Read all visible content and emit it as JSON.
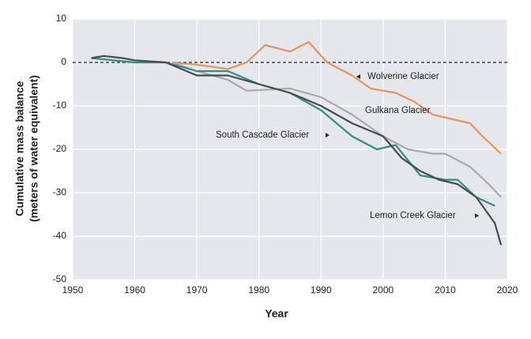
{
  "chart_data": {
    "type": "line",
    "xlabel": "Year",
    "ylabel": [
      "Cumulative mass balance",
      "(meters of water equivalent)"
    ],
    "xlim": [
      1950,
      2020
    ],
    "xticks": [
      1950,
      1960,
      1970,
      1980,
      1990,
      2000,
      2010,
      2020
    ],
    "ylim": [
      -50,
      10
    ],
    "yticks": [
      10,
      0,
      -10,
      -20,
      -30,
      -40,
      -50
    ],
    "grid": true,
    "series": [
      {
        "name": "Wolverine Glacier",
        "color": "#e8915a",
        "x": [
          1966,
          1970,
          1975,
          1978,
          1981,
          1985,
          1988,
          1991,
          1995,
          1998,
          2002,
          2005,
          2008,
          2011,
          2014,
          2016,
          2019
        ],
        "values": [
          0,
          -0.5,
          -1.5,
          0,
          4,
          2.5,
          4.7,
          0,
          -3,
          -6,
          -7,
          -9,
          -12,
          -13,
          -14,
          -17,
          -21
        ]
      },
      {
        "name": "Gulkana Glacier",
        "color": "#a9a9a9",
        "x": [
          1966,
          1970,
          1975,
          1978,
          1985,
          1990,
          1995,
          2000,
          2004,
          2008,
          2010,
          2014,
          2017,
          2019
        ],
        "values": [
          0,
          -2,
          -4,
          -6.5,
          -6,
          -8,
          -12,
          -17,
          -20,
          -21,
          -21,
          -24,
          -28,
          -31
        ]
      },
      {
        "name": "South Cascade Glacier",
        "color": "#2f8f84",
        "x": [
          1953,
          1960,
          1965,
          1970,
          1975,
          1980,
          1985,
          1990,
          1995,
          1999,
          2002,
          2006,
          2010,
          2012,
          2015,
          2018
        ],
        "values": [
          1,
          0,
          0,
          -2,
          -2,
          -5,
          -7,
          -11,
          -17,
          -20,
          -19,
          -26,
          -27,
          -27,
          -31,
          -33
        ]
      },
      {
        "name": "Lemon Creek Glacier",
        "color": "#4a4a4a",
        "x": [
          1953,
          1955,
          1958,
          1960,
          1965,
          1970,
          1975,
          1980,
          1985,
          1990,
          1995,
          2000,
          2003,
          2006,
          2009,
          2012,
          2015,
          2018,
          2019
        ],
        "values": [
          1,
          1.5,
          1,
          0.5,
          0,
          -3,
          -3,
          -5,
          -7,
          -10,
          -14,
          -17,
          -22,
          -25,
          -27,
          -28,
          -31,
          -37,
          -42
        ]
      }
    ]
  }
}
